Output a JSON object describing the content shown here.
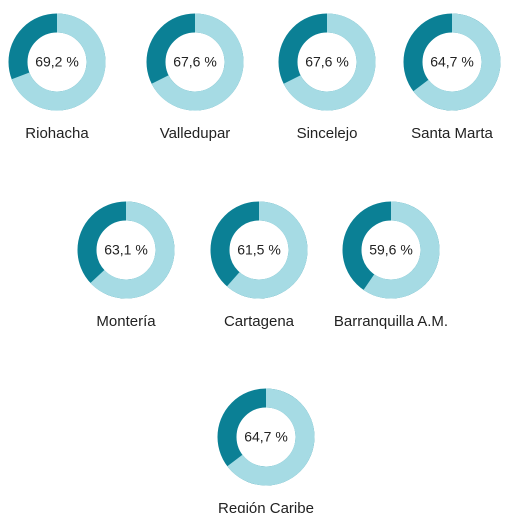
{
  "chart_data": {
    "type": "donut",
    "categories": [
      "Riohacha",
      "Valledupar",
      "Sincelejo",
      "Santa Marta",
      "Montería",
      "Cartagena",
      "Barranquilla A.M.",
      "Región Caribe"
    ],
    "values": [
      69.2,
      67.6,
      67.6,
      64.7,
      63.1,
      61.5,
      59.6,
      64.7
    ],
    "value_labels": [
      "69,2 %",
      "67,6 %",
      "67,6 %",
      "64,7 %",
      "63,1 %",
      "61,5 %",
      "59,6 %",
      "64,7 %"
    ],
    "color": "#a6dbe4",
    "rest_color": "#0b8095"
  }
}
